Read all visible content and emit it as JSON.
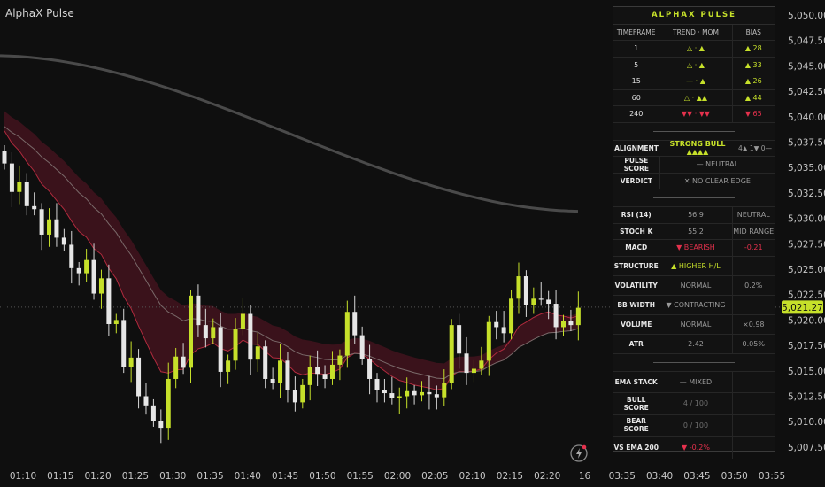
{
  "app_title": "AlphaX Pulse",
  "price_axis": {
    "labels": [
      "5,050.00",
      "5,047.50",
      "5,045.00",
      "5,042.50",
      "5,040.00",
      "5,037.50",
      "5,035.00",
      "5,032.50",
      "5,030.00",
      "5,027.50",
      "5,025.00",
      "5,022.50",
      "5,020.00",
      "5,017.50",
      "5,015.00",
      "5,012.50",
      "5,010.00",
      "5,007.50"
    ],
    "values": [
      5050,
      5047.5,
      5045,
      5042.5,
      5040,
      5037.5,
      5035,
      5032.5,
      5030,
      5027.5,
      5025,
      5022.5,
      5020,
      5017.5,
      5015,
      5012.5,
      5010,
      5007.5
    ],
    "current_price_label": "5,021.27",
    "current_price": 5021.27,
    "current_price_color": "#c6e02a"
  },
  "time_axis": {
    "labels": [
      "01:10",
      "01:15",
      "01:20",
      "01:25",
      "01:30",
      "01:35",
      "01:40",
      "01:45",
      "01:50",
      "01:55",
      "02:00",
      "02:05",
      "02:10",
      "02:15",
      "02:20",
      "16",
      "03:35",
      "03:40",
      "03:45",
      "03:50",
      "03:55"
    ]
  },
  "colors": {
    "accent": "#c6e02a",
    "bearish": "#e5314d",
    "cloud": "#4a1420",
    "ema200": "#4a4a4a"
  },
  "icons": {
    "replay": "lightning-bolt-icon"
  },
  "chart_data": {
    "type": "candlestick",
    "series": [
      {
        "name": "",
        "values": [
          5035.4,
          5032.6,
          5033.6,
          5031.2,
          5030.9,
          5028.4,
          5029.9,
          5028.1,
          5027.4,
          5025.1,
          5024.6,
          5025.9,
          5022.6,
          5024.1,
          5019.6,
          5020.0,
          5015.4,
          5016.3,
          5012.5,
          5011.6,
          5010.1,
          5009.4,
          5014.2,
          5016.4,
          5015.3,
          5022.4,
          5019.5,
          5018.2,
          5019.3,
          5014.9,
          5016.0,
          5019.1,
          5020.6,
          5016.1,
          5017.4,
          5014.2,
          5013.8,
          5016.0,
          5013.1,
          5011.9,
          5013.6,
          5015.4,
          5014.7,
          5014.2,
          5015.6,
          5016.5,
          5020.8,
          5018.5,
          5016.2,
          5014.2,
          5013.1,
          5012.8,
          5012.3,
          5012.5,
          5013.0,
          5012.6,
          5012.9,
          5012.7,
          5012.4,
          5013.8,
          5019.5,
          5016.7,
          5014.8,
          5015.2,
          5016.0,
          5019.8,
          5019.3,
          5018.7,
          5022.1,
          5024.3,
          5021.5,
          5022.1,
          5022.0,
          5021.6,
          5019.3,
          5019.9,
          5019.5,
          5021.2
        ]
      }
    ],
    "ylim": [
      5006,
      5051
    ]
  },
  "panel": {
    "title": "ALPHAX PULSE",
    "headers": {
      "timeframe": "TIMEFRAME",
      "trend_mom": "TREND · MOM",
      "bias": "BIAS"
    },
    "rows": [
      {
        "tf": "1",
        "trend": "△ · ▲",
        "bias": "▲ 28",
        "dir": "up"
      },
      {
        "tf": "5",
        "trend": "△ · ▲",
        "bias": "▲ 33",
        "dir": "up"
      },
      {
        "tf": "15",
        "trend": "— · ▲",
        "bias": "▲ 26",
        "dir": "up"
      },
      {
        "tf": "60",
        "trend": "△ · ▲▲",
        "bias": "▲ 44",
        "dir": "up"
      },
      {
        "tf": "240",
        "trend": "▼▼ · ▼▼",
        "bias": "▼ 65",
        "dir": "dn"
      }
    ],
    "alignment": {
      "label": "ALIGNMENT",
      "value": "STRONG BULL ▲▲▲▲",
      "extra": "4▲ 1▼ 0—"
    },
    "pulse_score": {
      "label": "PULSE SCORE",
      "value": "— NEUTRAL"
    },
    "verdict": {
      "label": "VERDICT",
      "value": "✕ NO CLEAR EDGE"
    },
    "rsi": {
      "label": "RSI (14)",
      "value": "56.9",
      "extra": "NEUTRAL"
    },
    "stoch": {
      "label": "STOCH K",
      "value": "55.2",
      "extra": "MID RANGE"
    },
    "macd": {
      "label": "MACD",
      "value": "▼ BEARISH",
      "extra": "-0.21"
    },
    "structure": {
      "label": "STRUCTURE",
      "value": "▲ HIGHER H/L"
    },
    "volatility": {
      "label": "VOLATILITY",
      "value": "NORMAL",
      "extra": "0.2%"
    },
    "bb_width": {
      "label": "BB WIDTH",
      "value": "▼ CONTRACTING"
    },
    "volume": {
      "label": "VOLUME",
      "value": "NORMAL",
      "extra": "×0.98"
    },
    "atr": {
      "label": "ATR",
      "value": "2.42",
      "extra": "0.05%"
    },
    "ema_stack": {
      "label": "EMA STACK",
      "value": "— MIXED"
    },
    "bull_score": {
      "label": "BULL SCORE",
      "value": "4 / 100"
    },
    "bear_score": {
      "label": "BEAR SCORE",
      "value": "0 / 100"
    },
    "vs_ema": {
      "label": "VS EMA 200",
      "value": "▼ -0.2%"
    }
  }
}
